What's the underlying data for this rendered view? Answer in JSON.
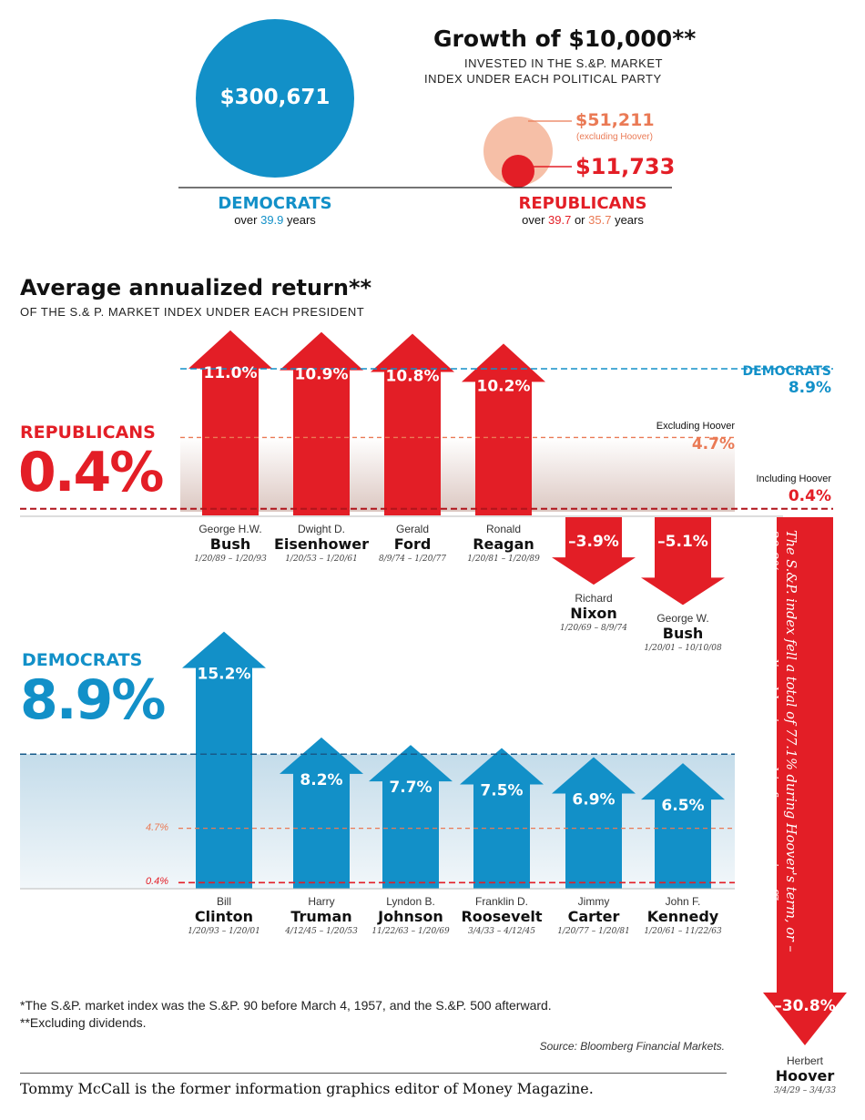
{
  "growth": {
    "title": "Growth of $10,000**",
    "subtitle_line1": "INVESTED IN THE S.&P. MARKET",
    "subtitle_line2": "INDEX UNDER EACH POLITICAL PARTY",
    "dem_value": "$300,671",
    "dem_label": "DEMOCRATS",
    "dem_years_prefix": "over ",
    "dem_years": "39.9",
    "dem_years_suffix": " years",
    "rep_excl_value": "$51,211",
    "rep_excl_note": "(excluding Hoover)",
    "rep_value": "$11,733",
    "rep_label": "REPUBLICANS",
    "rep_years_prefix": "over ",
    "rep_years_a": "39.7",
    "rep_years_or": " or ",
    "rep_years_b": "35.7",
    "rep_years_suffix": " years"
  },
  "returns": {
    "title": "Average annualized return**",
    "subtitle": "OF THE S.& P. MARKET INDEX UNDER EACH PRESIDENT",
    "rep_label": "REPUBLICANS",
    "rep_avg": "0.4%",
    "dem_label": "DEMOCRATS",
    "dem_avg": "8.9%",
    "ref_dem_label": "DEMOCRATS",
    "ref_dem_value": "8.9%",
    "ref_excl_label": "Excluding Hoover",
    "ref_excl_value": "4.7%",
    "ref_incl_label": "Including Hoover",
    "ref_incl_value": "0.4%",
    "dem_ref_47": "4.7%",
    "dem_ref_04": "0.4%",
    "hoover_note": "The S.&P. index fell  a total of 77.1% during Hoover's term, or –30.8% on an annualized basis over his four years in office."
  },
  "chart_data": [
    {
      "type": "bubble",
      "title": "Growth of $10,000**",
      "categories": [
        "DEMOCRATS",
        "REPUBLICANS (excluding Hoover)",
        "REPUBLICANS"
      ],
      "values": [
        300671,
        51211,
        11733
      ]
    },
    {
      "type": "bar",
      "title": "Average annualized return**",
      "series": [
        {
          "name": "REPUBLICANS",
          "categories": [
            "Bush",
            "Eisenhower",
            "Ford",
            "Reagan",
            "Nixon",
            "Bush",
            "Hoover"
          ],
          "values": [
            11.0,
            10.9,
            10.8,
            10.2,
            -3.9,
            -5.1,
            -30.8
          ]
        },
        {
          "name": "DEMOCRATS",
          "categories": [
            "Clinton",
            "Truman",
            "Johnson",
            "Roosevelt",
            "Carter",
            "Kennedy"
          ],
          "values": [
            15.2,
            8.2,
            7.7,
            7.5,
            6.9,
            6.5
          ]
        }
      ],
      "reference_lines": [
        8.9,
        4.7,
        0.4
      ]
    }
  ],
  "presidents": {
    "republican": [
      {
        "first": "George H.W.",
        "last": "Bush",
        "dates": "1/20/89 – 1/20/93",
        "label": "11.0%",
        "value": 11.0
      },
      {
        "first": "Dwight D.",
        "last": "Eisenhower",
        "dates": "1/20/53 – 1/20/61",
        "label": "10.9%",
        "value": 10.9
      },
      {
        "first": "Gerald",
        "last": "Ford",
        "dates": "8/9/74 – 1/20/77",
        "label": "10.8%",
        "value": 10.8
      },
      {
        "first": "Ronald",
        "last": "Reagan",
        "dates": "1/20/81 – 1/20/89",
        "label": "10.2%",
        "value": 10.2
      },
      {
        "first": "Richard",
        "last": "Nixon",
        "dates": "1/20/69 – 8/9/74",
        "label": "–3.9%",
        "value": -3.9
      },
      {
        "first": "George W.",
        "last": "Bush",
        "dates": "1/20/01 – 10/10/08",
        "label": "–5.1%",
        "value": -5.1
      }
    ],
    "hoover": {
      "first": "Herbert",
      "last": "Hoover",
      "dates": "3/4/29 – 3/4/33",
      "label": "–30.8%",
      "value": -30.8
    },
    "democrat": [
      {
        "first": "Bill",
        "last": "Clinton",
        "dates": "1/20/93 – 1/20/01",
        "label": "15.2%",
        "value": 15.2
      },
      {
        "first": "Harry",
        "last": "Truman",
        "dates": "4/12/45 – 1/20/53",
        "label": "8.2%",
        "value": 8.2
      },
      {
        "first": "Lyndon B.",
        "last": "Johnson",
        "dates": "11/22/63 – 1/20/69",
        "label": "7.7%",
        "value": 7.7
      },
      {
        "first": "Franklin D.",
        "last": "Roosevelt",
        "dates": "3/4/33 – 4/12/45",
        "label": "7.5%",
        "value": 7.5
      },
      {
        "first": "Jimmy",
        "last": "Carter",
        "dates": "1/20/77 – 1/20/81",
        "label": "6.9%",
        "value": 6.9
      },
      {
        "first": "John F.",
        "last": "Kennedy",
        "dates": "1/20/61 – 11/22/63",
        "label": "6.5%",
        "value": 6.5
      }
    ]
  },
  "footnotes": {
    "note1": "*The S.&P. market index was the S.&P. 90 before March 4, 1957, and the S.&P. 500 afterward.",
    "note2": "**Excluding dividends.",
    "source": "Source: Bloomberg Financial Markets.",
    "credit": "Tommy McCall is the former information graphics editor of Money Magazine."
  },
  "colors": {
    "democrat": "#1290c8",
    "republican": "#e31e26",
    "excluding_hoover": "#ea7a55",
    "rep_band": "#e8d6d0",
    "dem_band": "#cfe3ee"
  }
}
